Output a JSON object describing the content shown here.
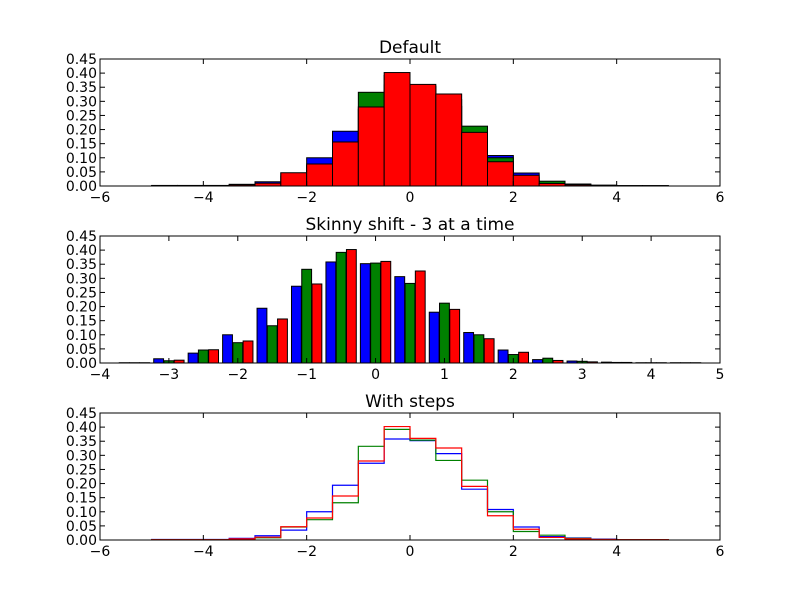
{
  "chart_data": [
    {
      "type": "bar",
      "title": "Default",
      "style": "overlaid bars",
      "xlim": [
        -6,
        6
      ],
      "ylim": [
        0,
        0.45
      ],
      "xticks": [
        "−6",
        "−4",
        "−2",
        "0",
        "2",
        "4",
        "6"
      ],
      "yticks": [
        "0.00",
        "0.05",
        "0.10",
        "0.15",
        "0.20",
        "0.25",
        "0.30",
        "0.35",
        "0.40",
        "0.45"
      ],
      "bin_edges": [
        -5,
        -4.5,
        -4,
        -3.5,
        -3,
        -2.5,
        -2,
        -1.5,
        -1,
        -0.5,
        0,
        0.5,
        1,
        1.5,
        2,
        2.5,
        3,
        3.5,
        4,
        4.5,
        5
      ],
      "series": [
        {
          "color": "#0000ff",
          "values": [
            0.002,
            0.002,
            0.002,
            0.006,
            0.015,
            0.035,
            0.1,
            0.194,
            0.272,
            0.358,
            0.352,
            0.306,
            0.18,
            0.108,
            0.046,
            0.012,
            0.007,
            0.003,
            0.001,
            0.001
          ]
        },
        {
          "color": "#008000",
          "values": [
            0.001,
            0.001,
            0.001,
            0.003,
            0.008,
            0.046,
            0.072,
            0.132,
            0.332,
            0.392,
            0.354,
            0.282,
            0.212,
            0.1,
            0.03,
            0.017,
            0.006,
            0.002,
            0.001,
            0.001
          ]
        },
        {
          "color": "#ff0000",
          "values": [
            0.001,
            0.001,
            0.001,
            0.004,
            0.01,
            0.047,
            0.078,
            0.156,
            0.28,
            0.402,
            0.36,
            0.326,
            0.19,
            0.086,
            0.038,
            0.009,
            0.004,
            0.002,
            0.001,
            0.001
          ]
        }
      ]
    },
    {
      "type": "bar",
      "title": "Skinny shift - 3 at a time",
      "style": "grouped bars",
      "xlim": [
        -4,
        5
      ],
      "ylim": [
        0,
        0.45
      ],
      "xticks": [
        "−4",
        "−3",
        "−2",
        "−1",
        "0",
        "1",
        "2",
        "3",
        "4",
        "5"
      ],
      "yticks": [
        "0.00",
        "0.05",
        "0.10",
        "0.15",
        "0.20",
        "0.25",
        "0.30",
        "0.35",
        "0.40",
        "0.45"
      ],
      "bar_x": [
        -3.5,
        -3.0,
        -2.5,
        -2.0,
        -1.5,
        -1.0,
        -0.5,
        0,
        0.5,
        1.0,
        1.5,
        2.0,
        2.5,
        3.0,
        3.5,
        4.0,
        4.5
      ],
      "series": [
        {
          "color": "#0000ff",
          "values": [
            0.001,
            0.015,
            0.035,
            0.1,
            0.194,
            0.272,
            0.358,
            0.352,
            0.306,
            0.18,
            0.108,
            0.046,
            0.012,
            0.007,
            0.003,
            0.001,
            0.001
          ]
        },
        {
          "color": "#008000",
          "values": [
            0.001,
            0.008,
            0.046,
            0.072,
            0.132,
            0.332,
            0.392,
            0.354,
            0.282,
            0.212,
            0.1,
            0.03,
            0.017,
            0.006,
            0.002,
            0.001,
            0.001
          ]
        },
        {
          "color": "#ff0000",
          "values": [
            0.001,
            0.01,
            0.047,
            0.078,
            0.156,
            0.28,
            0.402,
            0.36,
            0.326,
            0.19,
            0.086,
            0.038,
            0.009,
            0.004,
            0.002,
            0.001,
            0.001
          ]
        }
      ]
    },
    {
      "type": "line",
      "title": "With steps",
      "style": "step histogram",
      "xlim": [
        -6,
        6
      ],
      "ylim": [
        0,
        0.45
      ],
      "xticks": [
        "−6",
        "−4",
        "−2",
        "0",
        "2",
        "4",
        "6"
      ],
      "yticks": [
        "0.00",
        "0.05",
        "0.10",
        "0.15",
        "0.20",
        "0.25",
        "0.30",
        "0.35",
        "0.40",
        "0.45"
      ],
      "bin_edges": [
        -5,
        -4.5,
        -4,
        -3.5,
        -3,
        -2.5,
        -2,
        -1.5,
        -1,
        -0.5,
        0,
        0.5,
        1,
        1.5,
        2,
        2.5,
        3,
        3.5,
        4,
        4.5,
        5
      ],
      "series": [
        {
          "color": "#0000ff",
          "values": [
            0.002,
            0.002,
            0.002,
            0.006,
            0.015,
            0.035,
            0.1,
            0.194,
            0.272,
            0.358,
            0.352,
            0.306,
            0.18,
            0.108,
            0.046,
            0.012,
            0.007,
            0.003,
            0.001,
            0.001
          ]
        },
        {
          "color": "#008000",
          "values": [
            0.001,
            0.001,
            0.001,
            0.003,
            0.008,
            0.046,
            0.072,
            0.132,
            0.332,
            0.392,
            0.354,
            0.282,
            0.212,
            0.1,
            0.03,
            0.017,
            0.006,
            0.002,
            0.001,
            0.001
          ]
        },
        {
          "color": "#ff0000",
          "values": [
            0.001,
            0.001,
            0.001,
            0.004,
            0.01,
            0.047,
            0.078,
            0.156,
            0.28,
            0.402,
            0.36,
            0.326,
            0.19,
            0.086,
            0.038,
            0.009,
            0.004,
            0.002,
            0.001,
            0.001
          ]
        }
      ]
    }
  ]
}
